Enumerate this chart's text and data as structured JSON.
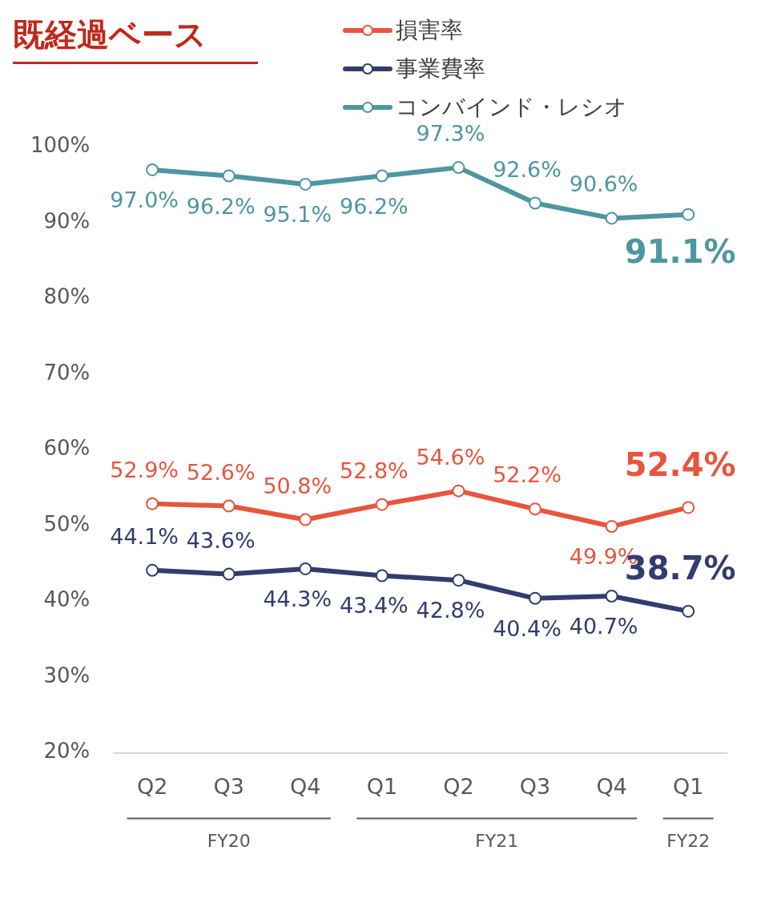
{
  "chart_data": {
    "type": "line",
    "title": "既経過ベース",
    "categories": [
      "Q2",
      "Q3",
      "Q4",
      "Q1",
      "Q2",
      "Q3",
      "Q4",
      "Q1"
    ],
    "series": [
      {
        "name": "損害率",
        "color": "#e8553f",
        "values": [
          52.9,
          52.6,
          50.8,
          52.8,
          54.6,
          52.2,
          49.9,
          52.4
        ],
        "value_labels": [
          "52.9%",
          "52.6%",
          "50.8%",
          "52.8%",
          "54.6%",
          "52.2%",
          "49.9%",
          "52.4%"
        ]
      },
      {
        "name": "事業費率",
        "color": "#323c6e",
        "values": [
          44.1,
          43.6,
          44.3,
          43.4,
          42.8,
          40.4,
          40.7,
          38.7
        ],
        "value_labels": [
          "44.1%",
          "43.6%",
          "44.3%",
          "43.4%",
          "42.8%",
          "40.4%",
          "40.7%",
          "38.7%"
        ]
      },
      {
        "name": "コンバインド・レシオ",
        "color": "#4e96a0",
        "values": [
          97.0,
          96.2,
          95.1,
          96.2,
          97.3,
          92.6,
          90.6,
          91.1
        ],
        "value_labels": [
          "97.0%",
          "96.2%",
          "95.1%",
          "96.2%",
          "97.3%",
          "92.6%",
          "90.6%",
          "91.1%"
        ]
      }
    ],
    "ylim": [
      20,
      100
    ],
    "yticks": [
      {
        "value": 20,
        "label": "20%"
      },
      {
        "value": 30,
        "label": "30%"
      },
      {
        "value": 40,
        "label": "40%"
      },
      {
        "value": 50,
        "label": "50%"
      },
      {
        "value": 60,
        "label": "60%"
      },
      {
        "value": 70,
        "label": "70%"
      },
      {
        "value": 80,
        "label": "80%"
      },
      {
        "value": 90,
        "label": "90%"
      },
      {
        "value": 100,
        "label": "100%"
      }
    ],
    "annotations": [
      "FY20",
      "FY21",
      "FY22"
    ],
    "grid": false,
    "legend": "top",
    "marker": "circle",
    "line_style": "solid"
  }
}
